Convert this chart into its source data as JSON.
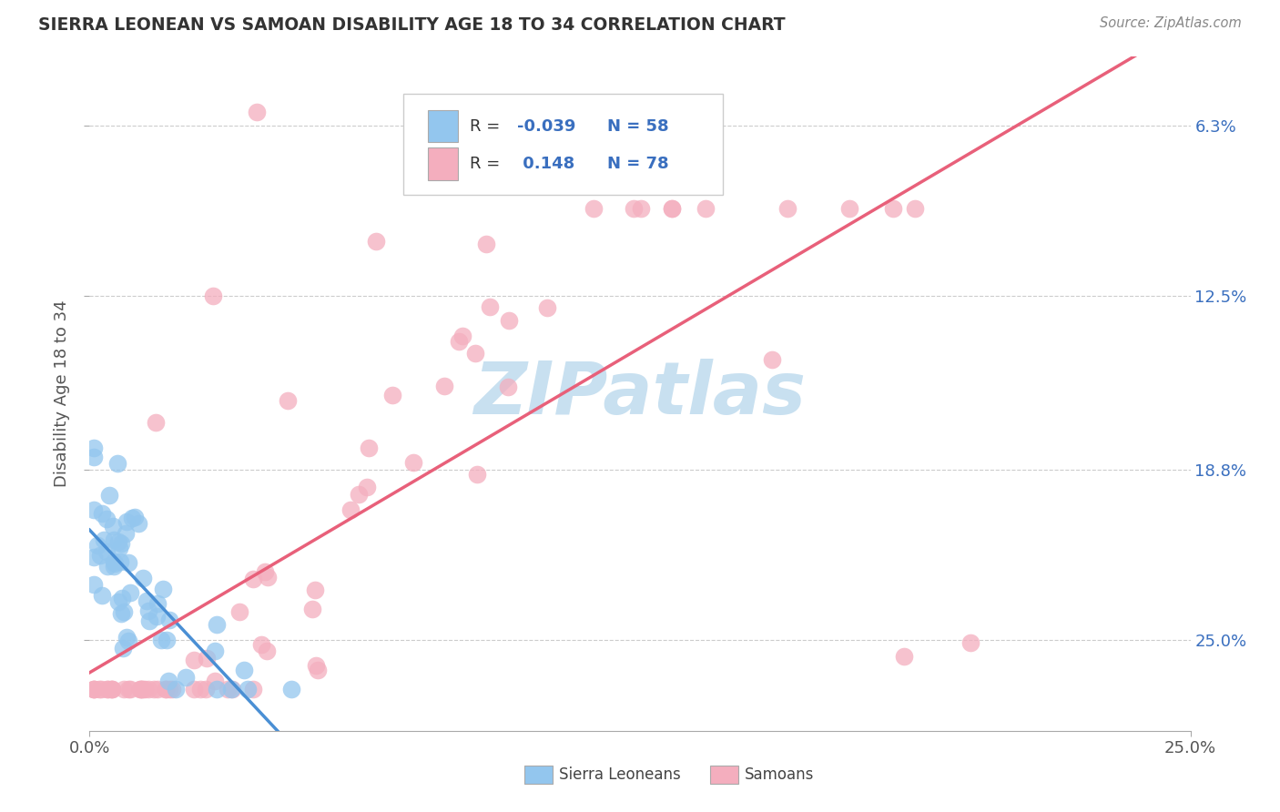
{
  "title": "SIERRA LEONEAN VS SAMOAN DISABILITY AGE 18 TO 34 CORRELATION CHART",
  "source": "Source: ZipAtlas.com",
  "ylabel": "Disability Age 18 to 34",
  "xlim": [
    0.0,
    0.25
  ],
  "ylim": [
    0.03,
    0.275
  ],
  "yticks": [
    0.063,
    0.125,
    0.188,
    0.25
  ],
  "right_ytick_labels": [
    "25.0%",
    "18.8%",
    "12.5%",
    "6.3%"
  ],
  "background_color": "#ffffff",
  "sierra_color": "#93C6EE",
  "samoan_color": "#F4AEBE",
  "sierra_line_color": "#4A8FD4",
  "samoan_line_color": "#E8607A",
  "grid_color": "#cccccc",
  "r_n_color": "#3A6FBF",
  "label_color": "#3A6FBF",
  "legend_color1": "#93C6EE",
  "legend_color2": "#F4AEBE",
  "watermark_color": "#C8E0F0",
  "tick_label_color": "#555555",
  "title_color": "#333333"
}
